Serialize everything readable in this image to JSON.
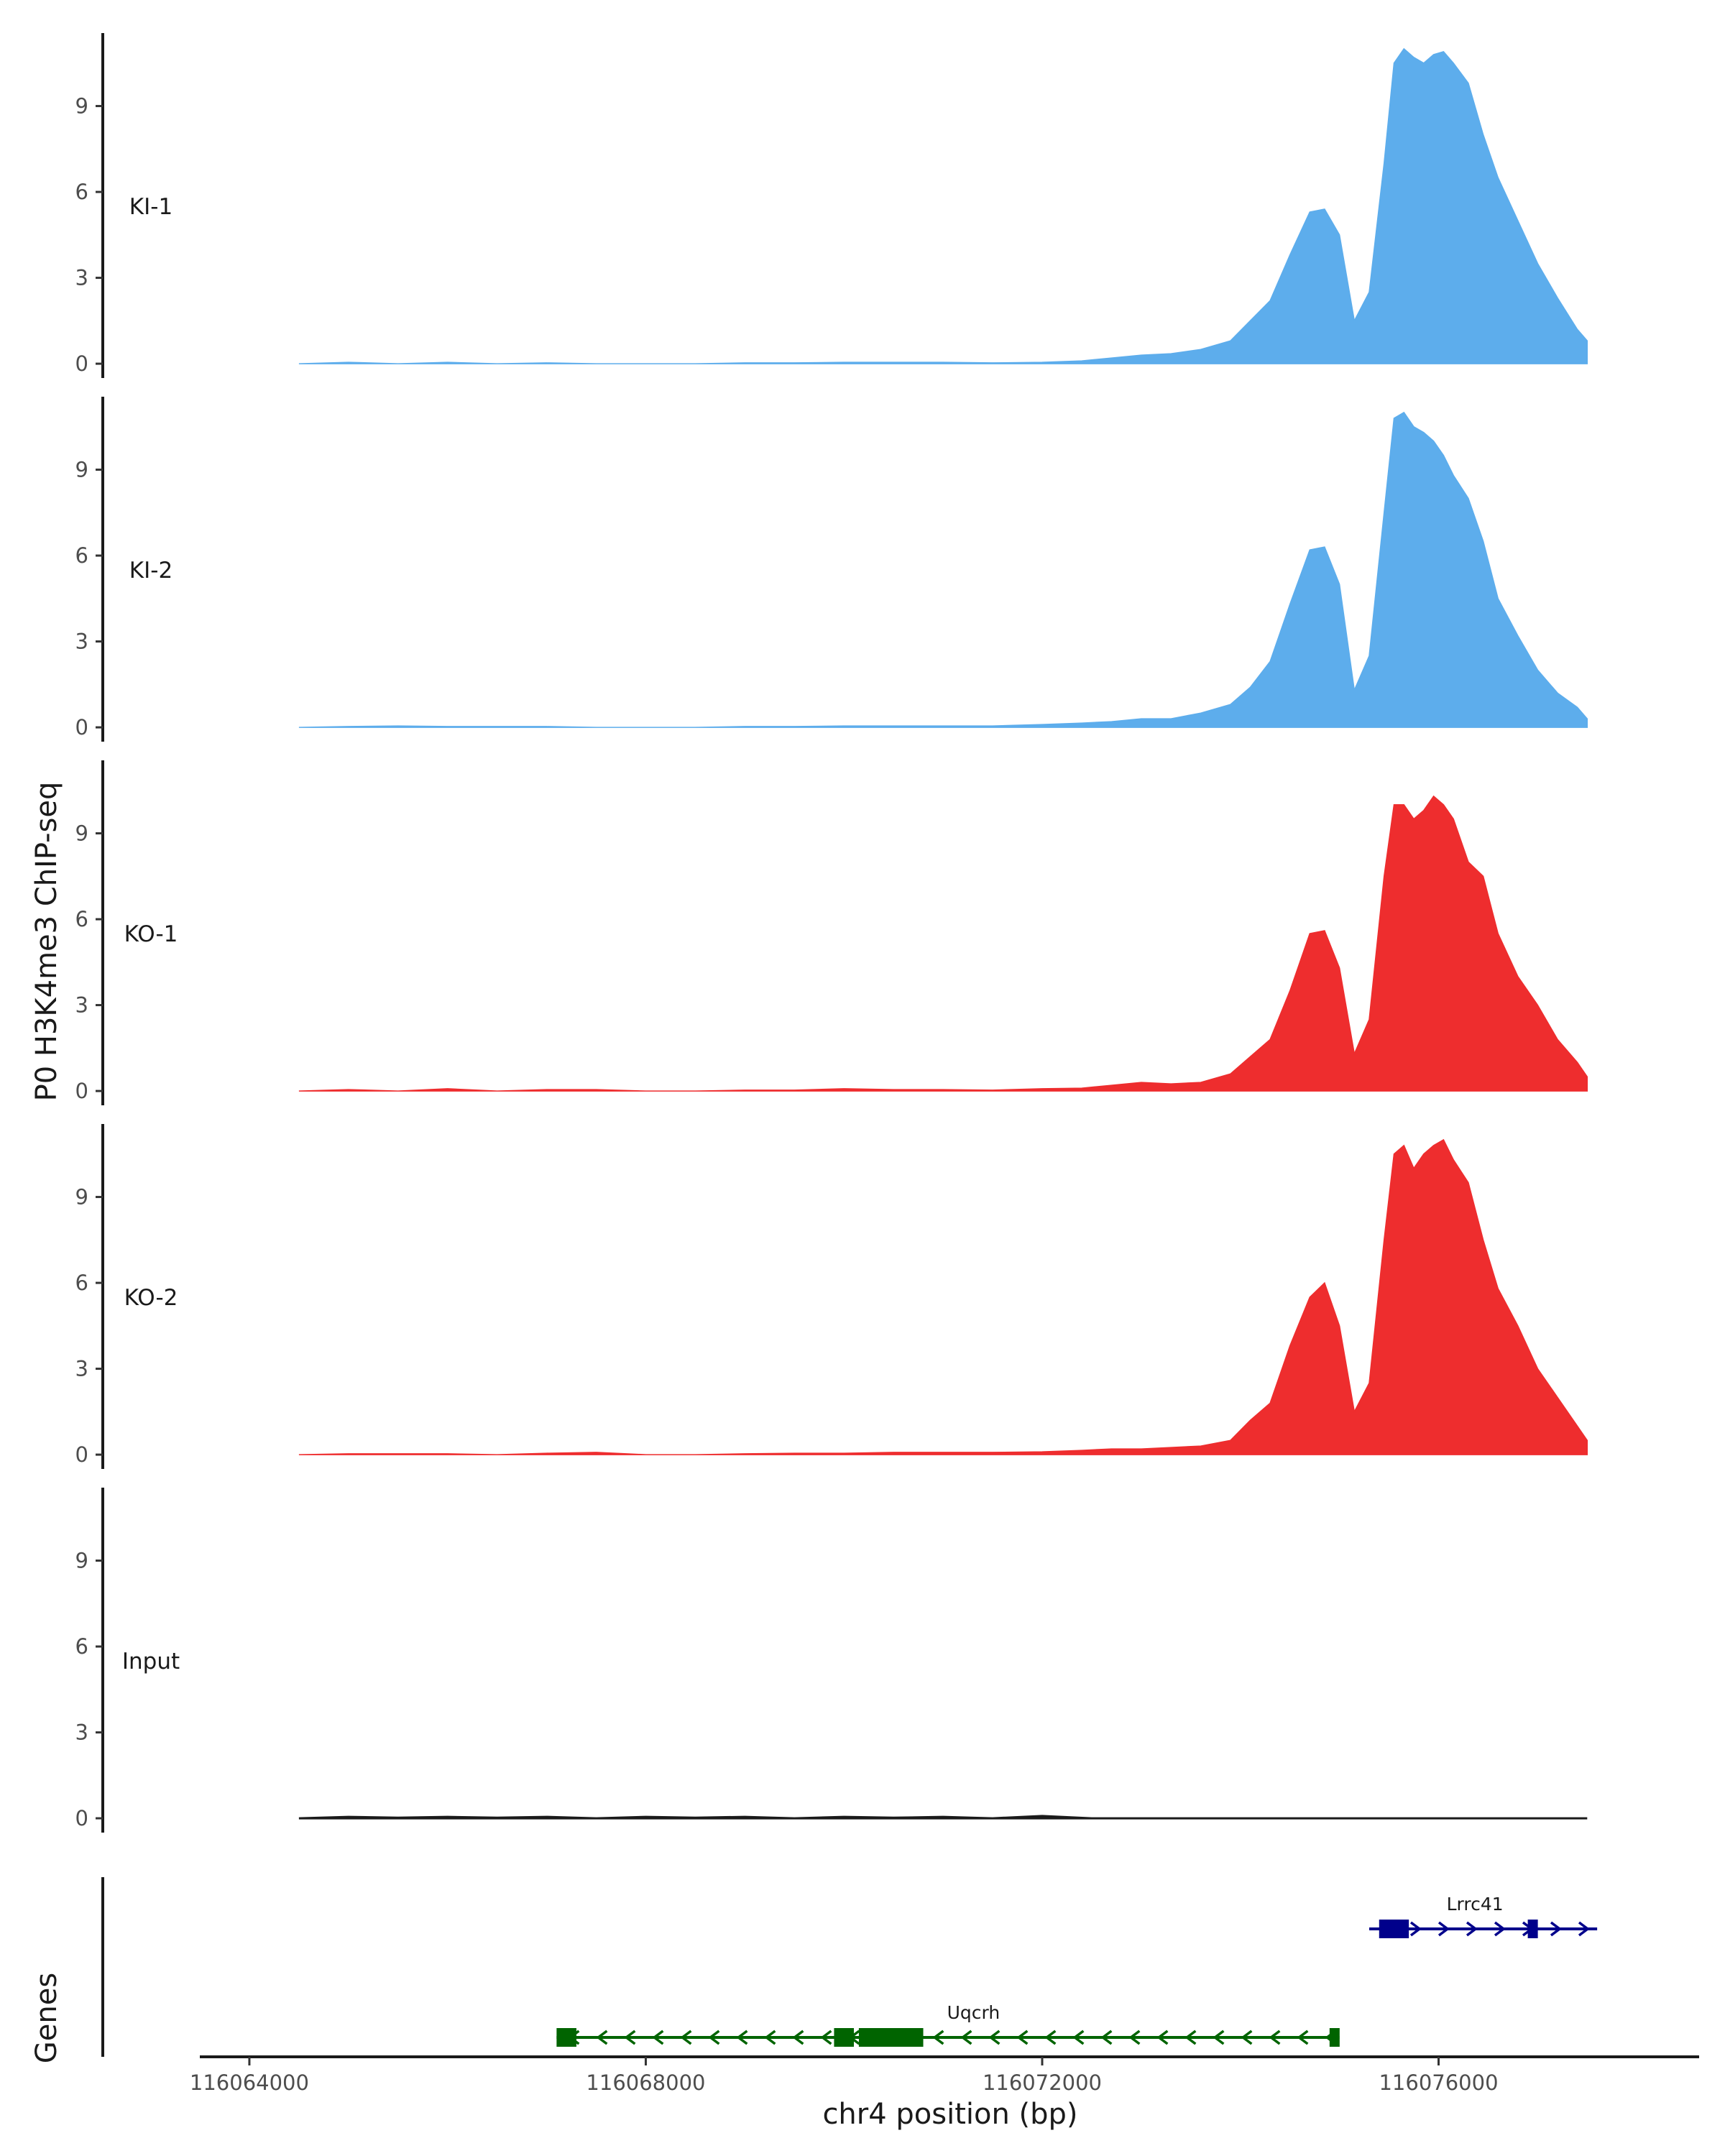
{
  "chart_data": {
    "type": "area",
    "ylabel": "P0 H3K4me3 ChIP-seq",
    "xlabel": "chr4 position (bp)",
    "xlim": [
      116063500,
      116078600
    ],
    "ylim": [
      -0.5,
      11.7
    ],
    "yticks": [
      0,
      3,
      6,
      9
    ],
    "ytick_labels": [
      "0",
      "3",
      "6",
      "9"
    ],
    "xticks": [
      116064000,
      116068000,
      116072000,
      116076000
    ],
    "xtick_labels": [
      "116064000",
      "116068000",
      "116072000",
      "116076000"
    ],
    "tracks": [
      {
        "name": "KI-1",
        "color": "#5DADEC",
        "x": [
          116064500,
          116065000,
          116065500,
          116066000,
          116066500,
          116067000,
          116067500,
          116068000,
          116068500,
          116069000,
          116069500,
          116070000,
          116070500,
          116071000,
          116071500,
          116072000,
          116072400,
          116072700,
          116073000,
          116073300,
          116073600,
          116073900,
          116074100,
          116074300,
          116074500,
          116074700,
          116074850,
          116075000,
          116075150,
          116075300,
          116075450,
          116075550,
          116075650,
          116075750,
          116075850,
          116075950,
          116076050,
          116076150,
          116076300,
          116076450,
          116076600,
          116076800,
          116077000,
          116077200,
          116077400,
          116077500
        ],
        "values": [
          0.0,
          0.05,
          0.0,
          0.05,
          0.0,
          0.03,
          0.0,
          0.0,
          0.0,
          0.03,
          0.03,
          0.05,
          0.05,
          0.05,
          0.03,
          0.05,
          0.1,
          0.2,
          0.3,
          0.35,
          0.5,
          0.8,
          1.5,
          2.2,
          3.8,
          5.3,
          5.4,
          4.5,
          1.5,
          2.5,
          7.0,
          10.5,
          11.0,
          10.7,
          10.5,
          10.8,
          10.9,
          10.5,
          9.8,
          8.0,
          6.5,
          5.0,
          3.5,
          2.3,
          1.2,
          0.8
        ]
      },
      {
        "name": "KI-2",
        "color": "#5DADEC",
        "x": [
          116064500,
          116065000,
          116065500,
          116066000,
          116066500,
          116067000,
          116067500,
          116068000,
          116068500,
          116069000,
          116069500,
          116070000,
          116070500,
          116071000,
          116071500,
          116072000,
          116072400,
          116072700,
          116073000,
          116073300,
          116073600,
          116073900,
          116074100,
          116074300,
          116074500,
          116074700,
          116074850,
          116075000,
          116075150,
          116075300,
          116075450,
          116075550,
          116075650,
          116075750,
          116075850,
          116075950,
          116076050,
          116076150,
          116076300,
          116076450,
          116076600,
          116076800,
          116077000,
          116077200,
          116077400,
          116077500
        ],
        "values": [
          0.0,
          0.03,
          0.05,
          0.03,
          0.03,
          0.03,
          0.0,
          0.0,
          0.0,
          0.03,
          0.03,
          0.05,
          0.05,
          0.05,
          0.05,
          0.1,
          0.15,
          0.2,
          0.3,
          0.3,
          0.5,
          0.8,
          1.4,
          2.3,
          4.3,
          6.2,
          6.3,
          5.0,
          1.3,
          2.5,
          7.5,
          10.8,
          11.0,
          10.5,
          10.3,
          10.0,
          9.5,
          8.8,
          8.0,
          6.5,
          4.5,
          3.2,
          2.0,
          1.2,
          0.7,
          0.3
        ]
      },
      {
        "name": "KO-1",
        "color": "#EE2D2E",
        "x": [
          116064500,
          116065000,
          116065500,
          116066000,
          116066500,
          116067000,
          116067500,
          116068000,
          116068500,
          116069000,
          116069500,
          116070000,
          116070500,
          116071000,
          116071500,
          116072000,
          116072400,
          116072700,
          116073000,
          116073300,
          116073600,
          116073900,
          116074100,
          116074300,
          116074500,
          116074700,
          116074850,
          116075000,
          116075150,
          116075300,
          116075450,
          116075550,
          116075650,
          116075750,
          116075850,
          116075950,
          116076050,
          116076150,
          116076300,
          116076450,
          116076600,
          116076800,
          116077000,
          116077200,
          116077400,
          116077500
        ],
        "values": [
          0.0,
          0.05,
          0.0,
          0.08,
          0.0,
          0.05,
          0.05,
          0.0,
          0.0,
          0.03,
          0.03,
          0.08,
          0.05,
          0.05,
          0.03,
          0.08,
          0.1,
          0.2,
          0.3,
          0.25,
          0.3,
          0.6,
          1.2,
          1.8,
          3.5,
          5.5,
          5.6,
          4.3,
          1.3,
          2.5,
          7.5,
          10.0,
          10.0,
          9.5,
          9.8,
          10.3,
          10.0,
          9.5,
          8.0,
          7.5,
          5.5,
          4.0,
          3.0,
          1.8,
          1.0,
          0.5
        ]
      },
      {
        "name": "KO-2",
        "color": "#EE2D2E",
        "x": [
          116064500,
          116065000,
          116065500,
          116066000,
          116066500,
          116067000,
          116067500,
          116068000,
          116068500,
          116069000,
          116069500,
          116070000,
          116070500,
          116071000,
          116071500,
          116072000,
          116072400,
          116072700,
          116073000,
          116073300,
          116073600,
          116073900,
          116074100,
          116074300,
          116074500,
          116074700,
          116074850,
          116075000,
          116075150,
          116075300,
          116075450,
          116075550,
          116075650,
          116075750,
          116075850,
          116075950,
          116076050,
          116076150,
          116076300,
          116076450,
          116076600,
          116076800,
          116077000,
          116077200,
          116077400,
          116077500
        ],
        "values": [
          0.0,
          0.03,
          0.03,
          0.03,
          0.0,
          0.05,
          0.08,
          0.0,
          0.0,
          0.03,
          0.05,
          0.05,
          0.08,
          0.08,
          0.08,
          0.1,
          0.15,
          0.2,
          0.2,
          0.25,
          0.3,
          0.5,
          1.2,
          1.8,
          3.8,
          5.5,
          6.0,
          4.5,
          1.5,
          2.5,
          7.5,
          10.5,
          10.8,
          10.0,
          10.5,
          10.8,
          11.0,
          10.3,
          9.5,
          7.5,
          5.8,
          4.5,
          3.0,
          2.0,
          1.0,
          0.5
        ]
      },
      {
        "name": "Input",
        "color": "#1a1a1a",
        "x": [
          116064500,
          116065000,
          116065500,
          116066000,
          116066500,
          116067000,
          116067500,
          116068000,
          116068500,
          116069000,
          116069500,
          116070000,
          116070500,
          116071000,
          116071500,
          116072000,
          116072500,
          116073000,
          116073500,
          116074000,
          116074500,
          116075000,
          116075500,
          116076000,
          116076500,
          116077000,
          116077500
        ],
        "values": [
          0.0,
          0.05,
          0.02,
          0.05,
          0.02,
          0.05,
          0.0,
          0.05,
          0.02,
          0.05,
          0.0,
          0.05,
          0.02,
          0.05,
          0.0,
          0.08,
          0.0,
          0.0,
          0.0,
          0.0,
          0.0,
          0.0,
          0.0,
          0.0,
          0.0,
          0.0,
          0.0
        ]
      }
    ],
    "genes": {
      "label": "Genes",
      "items": [
        {
          "name": "Uqcrh",
          "strand": "-",
          "color": "#006400",
          "start": 116067100,
          "end": 116075000,
          "exons": [
            [
              116067100,
              116067300
            ],
            [
              116069900,
              116070100
            ],
            [
              116070150,
              116070800
            ],
            [
              116074900,
              116075000
            ]
          ]
        },
        {
          "name": "Lrrc41",
          "strand": "+",
          "color": "#00008B",
          "start": 116075300,
          "end": 116077600,
          "exons": [
            [
              116075400,
              116075700
            ],
            [
              116076900,
              116077000
            ]
          ]
        }
      ]
    }
  }
}
